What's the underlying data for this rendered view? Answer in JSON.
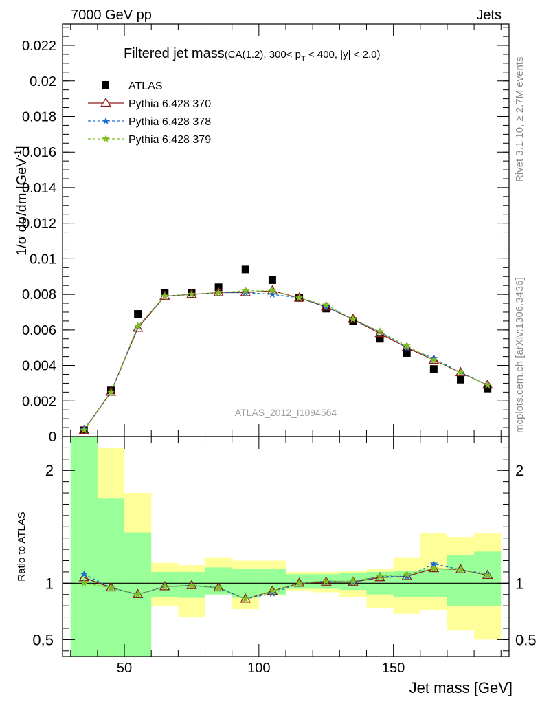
{
  "header": {
    "left_label": "7000 GeV pp",
    "right_label": "Jets"
  },
  "title": "Filtered jet mass",
  "subtitle_parts": {
    "pre": "(CA(1.2), 300< p",
    "sub": "T",
    "post": " < 400, |y| < 2.0)"
  },
  "side_labels": {
    "rivet": "Rivet 3.1.10, ≥ 2.7M events",
    "mcplots": "mcplots.cern.ch [arXiv:1306.3436]"
  },
  "analysis_tag": "ATLAS_2012_I1094564",
  "colors": {
    "data": "#000000",
    "pythia370": "#8b1a1a",
    "pythia378": "#1f6fd0",
    "pythia379": "#7fc01f",
    "band_inner": "#99ff99",
    "band_outer": "#ffff99"
  },
  "chart_data": [
    {
      "type": "scatter",
      "panel": "main",
      "ylabel_parts": {
        "pre": "1/σ dσ/dm [GeV",
        "sup": "-1",
        "post": "]"
      },
      "xlim": [
        27,
        193
      ],
      "ylim": [
        0,
        0.0232
      ],
      "yticks": [
        0,
        0.002,
        0.004,
        0.006,
        0.008,
        0.01,
        0.012,
        0.014,
        0.016,
        0.018,
        0.02,
        0.022
      ],
      "ytick_labels": [
        "0",
        "0.002",
        "0.004",
        "0.006",
        "0.008",
        "0.01",
        "0.012",
        "0.014",
        "0.016",
        "0.018",
        "0.02",
        "0.022"
      ],
      "x": [
        35,
        45,
        55,
        65,
        75,
        85,
        95,
        105,
        115,
        125,
        135,
        145,
        155,
        165,
        175,
        185
      ],
      "legend_position": "top-left",
      "series": [
        {
          "name": "ATLAS",
          "marker": "square",
          "values": [
            0.00035,
            0.0026,
            0.0069,
            0.0081,
            0.0081,
            0.0084,
            0.0094,
            0.0088,
            0.0078,
            0.0072,
            0.0065,
            0.0055,
            0.0047,
            0.0038,
            0.0032,
            0.0027
          ]
        },
        {
          "name": "Pythia 6.428 370",
          "marker": "triangle",
          "values": [
            0.00035,
            0.0025,
            0.0061,
            0.0079,
            0.008,
            0.0081,
            0.0081,
            0.0082,
            0.0078,
            0.0073,
            0.0066,
            0.0058,
            0.005,
            0.0043,
            0.0036,
            0.0029
          ]
        },
        {
          "name": "Pythia 6.428 378",
          "marker": "star",
          "values": [
            0.0004,
            0.0025,
            0.0062,
            0.0079,
            0.008,
            0.0081,
            0.0081,
            0.008,
            0.0078,
            0.0073,
            0.0066,
            0.0059,
            0.005,
            0.0044,
            0.0036,
            0.0029
          ]
        },
        {
          "name": "Pythia 6.428 379",
          "marker": "star",
          "values": [
            0.00035,
            0.0025,
            0.0062,
            0.0079,
            0.008,
            0.0081,
            0.0082,
            0.0082,
            0.0078,
            0.0074,
            0.0066,
            0.0059,
            0.0051,
            0.0043,
            0.0036,
            0.0029
          ]
        }
      ]
    },
    {
      "type": "line",
      "panel": "ratio",
      "ylabel": "Ratio to ATLAS",
      "xlabel": "Jet mass [GeV]",
      "xlim": [
        27,
        193
      ],
      "ylim": [
        0.35,
        2.3
      ],
      "xticks": [
        50,
        100,
        150
      ],
      "xtick_labels": [
        "50",
        "100",
        "150"
      ],
      "yticks": [
        0.5,
        1,
        2
      ],
      "ytick_labels": [
        "0.5",
        "1",
        "2"
      ],
      "bins": [
        [
          30,
          40
        ],
        [
          40,
          50
        ],
        [
          50,
          60
        ],
        [
          60,
          70
        ],
        [
          70,
          80
        ],
        [
          80,
          90
        ],
        [
          90,
          100
        ],
        [
          100,
          110
        ],
        [
          110,
          120
        ],
        [
          120,
          130
        ],
        [
          130,
          140
        ],
        [
          140,
          150
        ],
        [
          150,
          160
        ],
        [
          160,
          170
        ],
        [
          170,
          180
        ],
        [
          180,
          190
        ]
      ],
      "band_inner": [
        [
          0.35,
          2.3
        ],
        [
          0.35,
          1.75
        ],
        [
          0.35,
          1.45
        ],
        [
          0.88,
          1.1
        ],
        [
          0.87,
          1.1
        ],
        [
          0.9,
          1.14
        ],
        [
          0.87,
          1.13
        ],
        [
          0.9,
          1.13
        ],
        [
          0.95,
          1.08
        ],
        [
          0.95,
          1.08
        ],
        [
          0.94,
          1.09
        ],
        [
          0.9,
          1.1
        ],
        [
          0.88,
          1.11
        ],
        [
          0.88,
          1.13
        ],
        [
          0.8,
          1.25
        ],
        [
          0.8,
          1.28
        ]
      ],
      "band_outer": [
        [
          0.35,
          2.3
        ],
        [
          0.35,
          2.2
        ],
        [
          0.35,
          1.8
        ],
        [
          0.8,
          1.18
        ],
        [
          0.7,
          1.16
        ],
        [
          0.93,
          1.23
        ],
        [
          0.77,
          1.2
        ],
        [
          0.89,
          1.2
        ],
        [
          0.93,
          1.1
        ],
        [
          0.92,
          1.1
        ],
        [
          0.88,
          1.11
        ],
        [
          0.78,
          1.13
        ],
        [
          0.73,
          1.23
        ],
        [
          0.76,
          1.44
        ],
        [
          0.58,
          1.41
        ],
        [
          0.5,
          1.44
        ]
      ],
      "series": [
        {
          "name": "Pythia 6.428 370",
          "values": [
            1.05,
            0.96,
            0.9,
            0.97,
            0.98,
            0.96,
            0.86,
            0.93,
            1.0,
            1.01,
            1.01,
            1.05,
            1.06,
            1.13,
            1.12,
            1.07
          ]
        },
        {
          "name": "Pythia 6.428 378",
          "values": [
            1.08,
            0.96,
            0.9,
            0.97,
            0.98,
            0.96,
            0.86,
            0.91,
            1.0,
            1.02,
            1.01,
            1.06,
            1.06,
            1.17,
            1.12,
            1.08
          ]
        },
        {
          "name": "Pythia 6.428 379",
          "values": [
            1.0,
            0.96,
            0.9,
            0.97,
            0.98,
            0.96,
            0.86,
            0.93,
            1.0,
            1.02,
            1.02,
            1.06,
            1.08,
            1.13,
            1.12,
            1.07
          ]
        }
      ]
    }
  ]
}
